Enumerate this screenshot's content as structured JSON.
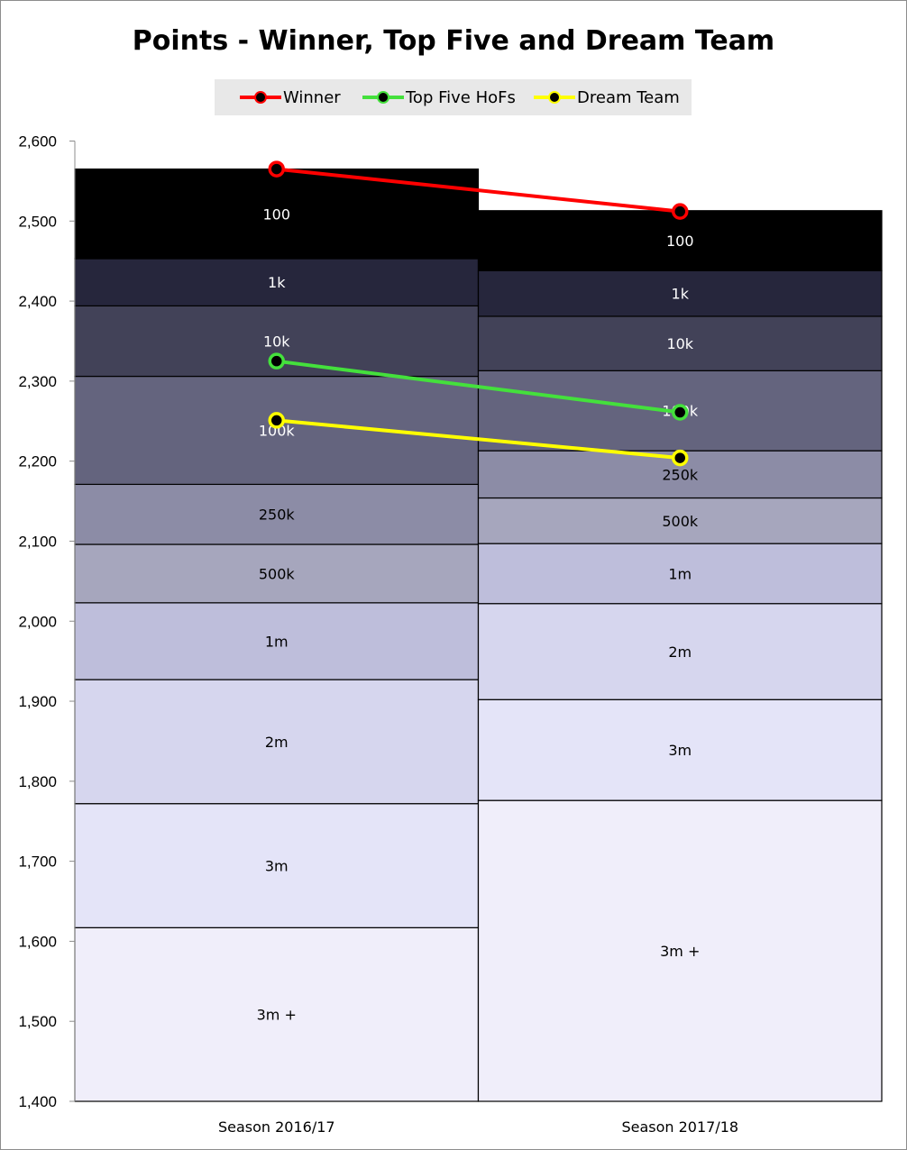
{
  "chart_data": {
    "type": "bar",
    "title": "Points - Winner, Top Five and Dream Team",
    "categories": [
      "Season 2016/17",
      "Season 2017/18"
    ],
    "ylim": [
      1400,
      2600
    ],
    "yticks": [
      1400,
      1500,
      1600,
      1700,
      1800,
      1900,
      2000,
      2100,
      2200,
      2300,
      2400,
      2500,
      2600
    ],
    "ytick_labels": [
      "1,400",
      "1,500",
      "1,600",
      "1,700",
      "1,800",
      "1,900",
      "2,000",
      "2,100",
      "2,200",
      "2,300",
      "2,400",
      "2,500",
      "2,600"
    ],
    "bands": [
      {
        "category": "Season 2016/17",
        "segments": [
          {
            "label": "3m +",
            "from": 1400,
            "to": 1617,
            "color": "#f0eefa"
          },
          {
            "label": "3m",
            "from": 1617,
            "to": 1772,
            "color": "#e4e4f8"
          },
          {
            "label": "2m",
            "from": 1772,
            "to": 1927,
            "color": "#d6d6ee"
          },
          {
            "label": "1m",
            "from": 1927,
            "to": 2023,
            "color": "#bebedb"
          },
          {
            "label": "500k",
            "from": 2023,
            "to": 2096,
            "color": "#a6a6bd"
          },
          {
            "label": "250k",
            "from": 2096,
            "to": 2171,
            "color": "#8c8ca6"
          },
          {
            "label": "100k",
            "from": 2171,
            "to": 2306,
            "color": "#64647e"
          },
          {
            "label": "10k",
            "from": 2306,
            "to": 2394,
            "color": "#424258"
          },
          {
            "label": "1k",
            "from": 2394,
            "to": 2453,
            "color": "#26263c"
          },
          {
            "label": "100",
            "from": 2453,
            "to": 2565,
            "color": "#000000"
          }
        ]
      },
      {
        "category": "Season 2017/18",
        "segments": [
          {
            "label": "3m +",
            "from": 1400,
            "to": 1776,
            "color": "#f0eefa"
          },
          {
            "label": "3m",
            "from": 1776,
            "to": 1902,
            "color": "#e4e4f8"
          },
          {
            "label": "2m",
            "from": 1902,
            "to": 2022,
            "color": "#d6d6ee"
          },
          {
            "label": "1m",
            "from": 2022,
            "to": 2097,
            "color": "#bebedb"
          },
          {
            "label": "500k",
            "from": 2097,
            "to": 2154,
            "color": "#a6a6bd"
          },
          {
            "label": "250k",
            "from": 2154,
            "to": 2213,
            "color": "#8c8ca6"
          },
          {
            "label": "100k",
            "from": 2213,
            "to": 2313,
            "color": "#64647e"
          },
          {
            "label": "10k",
            "from": 2313,
            "to": 2381,
            "color": "#424258"
          },
          {
            "label": "1k",
            "from": 2381,
            "to": 2438,
            "color": "#26263c"
          },
          {
            "label": "100",
            "from": 2438,
            "to": 2513,
            "color": "#000000"
          }
        ]
      }
    ],
    "series": [
      {
        "name": "Winner",
        "color": "#ff0000",
        "values": [
          2565,
          2512
        ]
      },
      {
        "name": "Top Five HoFs",
        "color": "#44e03c",
        "values": [
          2325,
          2261
        ]
      },
      {
        "name": "Dream Team",
        "color": "#ffff00",
        "values": [
          2251,
          2204
        ]
      }
    ],
    "legend_position": "top",
    "grid": false
  }
}
